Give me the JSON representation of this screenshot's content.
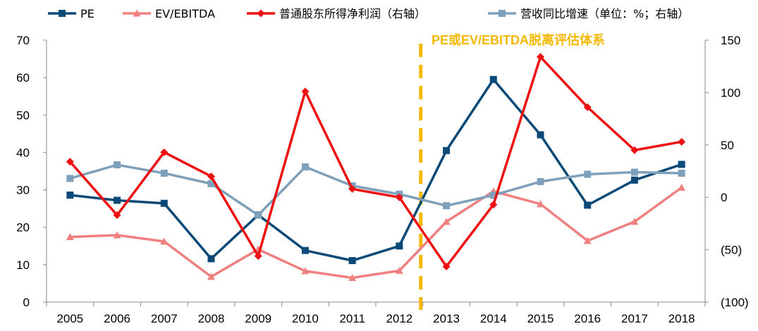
{
  "chart_data": {
    "type": "line",
    "title": "",
    "xlabel": "",
    "ylabel": "",
    "categories": [
      "2005",
      "2006",
      "2007",
      "2008",
      "2009",
      "2010",
      "2011",
      "2012",
      "2013",
      "2014",
      "2015",
      "2016",
      "2017",
      "2018"
    ],
    "left_axis": {
      "ylim": [
        0,
        70
      ],
      "ticks": [
        "0",
        "10",
        "20",
        "30",
        "40",
        "50",
        "60",
        "70"
      ]
    },
    "right_axis": {
      "ylim": [
        -100,
        150
      ],
      "ticks": [
        "(100)",
        "(50)",
        "0",
        "50",
        "100",
        "150"
      ]
    },
    "series": [
      {
        "name": "PE",
        "axis": "left",
        "color": "#0b4a78",
        "marker": "square",
        "values": [
          28.6,
          27.2,
          26.4,
          11.6,
          23.3,
          13.8,
          11.1,
          15.0,
          40.5,
          59.5,
          44.7,
          25.9,
          32.6,
          36.8
        ]
      },
      {
        "name": "EV/EBITDA",
        "axis": "left",
        "color": "#f08080",
        "marker": "triangle",
        "values": [
          17.4,
          17.9,
          16.2,
          6.8,
          14.1,
          8.3,
          6.5,
          8.4,
          21.5,
          29.6,
          26.2,
          16.4,
          21.5,
          30.6
        ]
      },
      {
        "name": "普通股东所得净利润（右轴）",
        "axis": "right",
        "color": "#ee1111",
        "marker": "diamond",
        "values": [
          34,
          -17,
          43,
          20,
          -56,
          101,
          8,
          0,
          -66,
          -7,
          134,
          86,
          45,
          53
        ]
      },
      {
        "name": "营收同比增速（单位：%；右轴）",
        "axis": "right",
        "color": "#7fa0bb",
        "marker": "square",
        "values": [
          18,
          31,
          23,
          13,
          -17,
          29,
          11,
          3,
          -8,
          2,
          15,
          22,
          24,
          23
        ]
      }
    ],
    "annotation": {
      "text": "PE或EV/EBITDA脱离评估体系",
      "color": "#f5b800"
    },
    "divider": {
      "after_category": "2012",
      "color": "#f5b800"
    },
    "legend_position": "top",
    "grid": false
  }
}
